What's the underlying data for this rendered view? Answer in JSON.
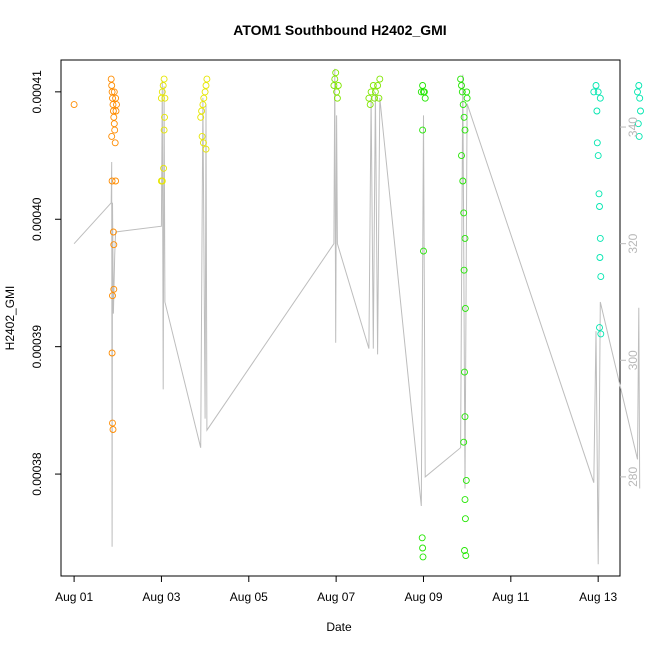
{
  "chart_data": {
    "type": "scatter",
    "title": "ATOM1 Southbound H2402_GMI",
    "xlabel": "Date",
    "ylabel": "H2402_GMI",
    "x_ticks": [
      {
        "label": "Aug 01",
        "value": 0
      },
      {
        "label": "Aug 03",
        "value": 2
      },
      {
        "label": "Aug 05",
        "value": 4
      },
      {
        "label": "Aug 07",
        "value": 6
      },
      {
        "label": "Aug 09",
        "value": 8
      },
      {
        "label": "Aug 11",
        "value": 10
      },
      {
        "label": "Aug 13",
        "value": 12
      }
    ],
    "x_range": [
      -0.3,
      12.5
    ],
    "y_ticks": [
      {
        "label": "0.00038",
        "value": 0.00038
      },
      {
        "label": "0.00039",
        "value": 0.00039
      },
      {
        "label": "0.00040",
        "value": 0.0004
      },
      {
        "label": "0.00041",
        "value": 0.00041
      }
    ],
    "ylim": [
      0.000372,
      0.0004125
    ],
    "y2_ticks": [
      {
        "label": "280",
        "value": 280
      },
      {
        "label": "300",
        "value": 300
      },
      {
        "label": "320",
        "value": 320
      },
      {
        "label": "340",
        "value": 340
      }
    ],
    "y2lim": [
      263,
      351.5
    ],
    "grid": false,
    "colors": {
      "axis": "#000000",
      "right_axis": "#bbbbbb",
      "line": "#bdbdbd"
    },
    "series": [
      {
        "color": "#ff8c00",
        "points": [
          [
            0.0,
            0.000409
          ],
          [
            0.85,
            0.000411
          ],
          [
            0.86,
            0.0004105
          ],
          [
            0.87,
            0.00041
          ],
          [
            0.88,
            0.0004095
          ],
          [
            0.89,
            0.000409
          ],
          [
            0.9,
            0.0004085
          ],
          [
            0.91,
            0.000408
          ],
          [
            0.92,
            0.0004075
          ],
          [
            0.93,
            0.000407
          ],
          [
            0.94,
            0.000406
          ],
          [
            0.86,
            0.0004065
          ],
          [
            0.87,
            0.000403
          ],
          [
            0.9,
            0.000399
          ],
          [
            0.91,
            0.000398
          ],
          [
            0.95,
            0.000403
          ],
          [
            0.88,
            0.000394
          ],
          [
            0.91,
            0.0003945
          ],
          [
            0.87,
            0.0003895
          ],
          [
            0.88,
            0.000384
          ],
          [
            0.89,
            0.0003835
          ],
          [
            0.96,
            0.0004085
          ],
          [
            0.97,
            0.000409
          ],
          [
            0.92,
            0.00041
          ],
          [
            0.95,
            0.0004095
          ]
        ]
      },
      {
        "color": "#e6e600",
        "points": [
          [
            2.0,
            0.000403
          ],
          [
            2.02,
            0.000403
          ],
          [
            2.05,
            0.000404
          ],
          [
            2.06,
            0.000407
          ],
          [
            2.07,
            0.000408
          ],
          [
            2.0,
            0.0004095
          ],
          [
            2.02,
            0.00041
          ],
          [
            2.04,
            0.0004105
          ],
          [
            2.06,
            0.000411
          ],
          [
            2.08,
            0.0004095
          ],
          [
            2.9,
            0.000408
          ],
          [
            2.92,
            0.0004085
          ],
          [
            2.95,
            0.000409
          ],
          [
            2.97,
            0.0004095
          ],
          [
            3.0,
            0.00041
          ],
          [
            3.02,
            0.0004105
          ],
          [
            3.04,
            0.000411
          ],
          [
            2.93,
            0.0004065
          ],
          [
            2.96,
            0.000406
          ],
          [
            3.02,
            0.0004055
          ]
        ]
      },
      {
        "color": "#80e600",
        "points": [
          [
            5.95,
            0.0004105
          ],
          [
            5.97,
            0.000411
          ],
          [
            5.99,
            0.0004115
          ],
          [
            6.01,
            0.00041
          ],
          [
            6.03,
            0.0004095
          ],
          [
            6.05,
            0.0004105
          ],
          [
            6.75,
            0.0004095
          ],
          [
            6.8,
            0.00041
          ],
          [
            6.85,
            0.0004105
          ],
          [
            6.9,
            0.00041
          ],
          [
            6.95,
            0.0004105
          ],
          [
            7.0,
            0.000411
          ],
          [
            6.78,
            0.000409
          ],
          [
            6.88,
            0.0004095
          ],
          [
            6.98,
            0.0004095
          ]
        ]
      },
      {
        "color": "#22e600",
        "points": [
          [
            7.95,
            0.00041
          ],
          [
            7.98,
            0.0004105
          ],
          [
            8.0,
            0.00041
          ],
          [
            8.02,
            0.00041
          ],
          [
            8.04,
            0.0004095
          ],
          [
            7.98,
            0.000407
          ],
          [
            8.0,
            0.0003975
          ],
          [
            7.97,
            0.000375
          ],
          [
            7.98,
            0.0003742
          ],
          [
            7.99,
            0.0003735
          ],
          [
            8.85,
            0.000411
          ],
          [
            8.87,
            0.0004105
          ],
          [
            8.89,
            0.00041
          ],
          [
            8.91,
            0.000409
          ],
          [
            8.93,
            0.000408
          ],
          [
            8.95,
            0.000407
          ],
          [
            8.87,
            0.000405
          ],
          [
            8.9,
            0.000403
          ],
          [
            8.92,
            0.0004005
          ],
          [
            8.95,
            0.0003985
          ],
          [
            8.93,
            0.000396
          ],
          [
            8.96,
            0.000393
          ],
          [
            8.94,
            0.000388
          ],
          [
            8.95,
            0.0003845
          ],
          [
            8.92,
            0.0003825
          ],
          [
            8.98,
            0.0003795
          ],
          [
            8.95,
            0.000378
          ],
          [
            8.96,
            0.0003765
          ],
          [
            8.94,
            0.000374
          ],
          [
            8.97,
            0.0003736
          ],
          [
            8.99,
            0.00041
          ],
          [
            9.0,
            0.0004095
          ]
        ]
      },
      {
        "color": "#00e6b0",
        "points": [
          [
            11.9,
            0.00041
          ],
          [
            11.95,
            0.0004105
          ],
          [
            12.0,
            0.00041
          ],
          [
            12.05,
            0.0004095
          ],
          [
            11.97,
            0.0004085
          ],
          [
            11.98,
            0.000406
          ],
          [
            12.0,
            0.000405
          ],
          [
            12.02,
            0.000402
          ],
          [
            12.03,
            0.000401
          ],
          [
            12.05,
            0.0003985
          ],
          [
            12.04,
            0.000397
          ],
          [
            12.06,
            0.0003955
          ],
          [
            12.03,
            0.0003915
          ],
          [
            12.06,
            0.000391
          ],
          [
            12.9,
            0.00041
          ],
          [
            12.93,
            0.0004105
          ],
          [
            12.95,
            0.0004095
          ],
          [
            12.97,
            0.0004085
          ],
          [
            12.92,
            0.0004075
          ],
          [
            12.94,
            0.0004065
          ]
        ]
      }
    ],
    "line2": [
      [
        0.0,
        320
      ],
      [
        0.85,
        327
      ],
      [
        0.86,
        334
      ],
      [
        0.87,
        268
      ],
      [
        0.88,
        327
      ],
      [
        0.9,
        308
      ],
      [
        0.93,
        318
      ],
      [
        0.95,
        322
      ],
      [
        2.0,
        323
      ],
      [
        2.02,
        348
      ],
      [
        2.04,
        295
      ],
      [
        2.06,
        347
      ],
      [
        2.08,
        310
      ],
      [
        2.9,
        285
      ],
      [
        2.95,
        345
      ],
      [
        3.0,
        290
      ],
      [
        3.02,
        344
      ],
      [
        3.04,
        288
      ],
      [
        5.95,
        320
      ],
      [
        5.97,
        350
      ],
      [
        5.99,
        303
      ],
      [
        6.01,
        342
      ],
      [
        6.03,
        320
      ],
      [
        6.75,
        302
      ],
      [
        6.8,
        345
      ],
      [
        6.85,
        302
      ],
      [
        6.9,
        346
      ],
      [
        6.95,
        301
      ],
      [
        7.0,
        345
      ],
      [
        7.95,
        275
      ],
      [
        8.0,
        342
      ],
      [
        8.04,
        280
      ],
      [
        8.85,
        285
      ],
      [
        8.9,
        349
      ],
      [
        8.95,
        278
      ],
      [
        9.0,
        344
      ],
      [
        11.9,
        279
      ],
      [
        11.95,
        305
      ],
      [
        12.0,
        265
      ],
      [
        12.05,
        310
      ],
      [
        12.9,
        283
      ],
      [
        12.93,
        309
      ],
      [
        12.95,
        278
      ]
    ]
  }
}
